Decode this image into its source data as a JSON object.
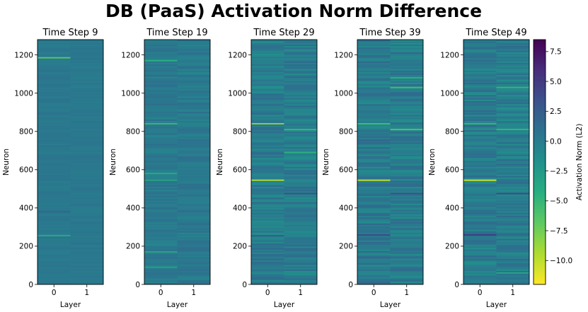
{
  "chart_data": {
    "type": "heatmap",
    "title": "DB (PaaS) Activation Norm Difference",
    "colormap": "viridis_r",
    "colorbar": {
      "label": "Activation Norm (L2)",
      "range": [
        -12.0,
        8.5
      ],
      "ticks": [
        "7.5",
        "5.0",
        "2.5",
        "0.0",
        "−2.5",
        "−5.0",
        "−7.5",
        "−10.0"
      ],
      "tick_values": [
        7.5,
        5.0,
        2.5,
        0.0,
        -2.5,
        -5.0,
        -7.5,
        -10.0
      ]
    },
    "panels": [
      {
        "title": "Time Step 9",
        "xlabel": "Layer",
        "ylabel": "Neuron",
        "x_ticks": [
          "0",
          "1"
        ],
        "y_ticks": [
          "0",
          "200",
          "400",
          "600",
          "800",
          "1000",
          "1200"
        ],
        "ylim": [
          0,
          1280
        ],
        "base_value": 0.3,
        "variation": 0.35,
        "highlights": [
          {
            "neuron": 1185,
            "layer": 0,
            "value": -6.5
          },
          {
            "neuron": 255,
            "layer": 0,
            "value": -4.0
          },
          {
            "neuron": 380,
            "layer": 0,
            "value": 1.5
          }
        ]
      },
      {
        "title": "Time Step 19",
        "xlabel": "Layer",
        "ylabel": "Neuron",
        "x_ticks": [
          "0",
          "1"
        ],
        "y_ticks": [
          "0",
          "200",
          "400",
          "600",
          "800",
          "1000",
          "1200"
        ],
        "ylim": [
          0,
          1280
        ],
        "base_value": 0.2,
        "variation": 0.9,
        "highlights": [
          {
            "neuron": 1170,
            "layer": 0,
            "value": -4.5
          },
          {
            "neuron": 840,
            "layer": 0,
            "value": -5.0
          },
          {
            "neuron": 580,
            "layer": 0,
            "value": -4.0
          },
          {
            "neuron": 545,
            "layer": 0,
            "value": -3.5
          },
          {
            "neuron": 170,
            "layer": 0,
            "value": -3.5
          },
          {
            "neuron": 90,
            "layer": 0,
            "value": -3.0
          }
        ]
      },
      {
        "title": "Time Step 29",
        "xlabel": "Layer",
        "ylabel": "Neuron",
        "x_ticks": [
          "0",
          "1"
        ],
        "y_ticks": [
          "0",
          "200",
          "400",
          "600",
          "800",
          "1000",
          "1200"
        ],
        "ylim": [
          0,
          1280
        ],
        "base_value": 0.0,
        "variation": 1.4,
        "highlights": [
          {
            "neuron": 840,
            "layer": 0,
            "value": -8.0
          },
          {
            "neuron": 545,
            "layer": 0,
            "value": -9.5
          },
          {
            "neuron": 810,
            "layer": 1,
            "value": -5.0
          },
          {
            "neuron": 690,
            "layer": 1,
            "value": -4.5
          },
          {
            "neuron": 475,
            "layer": 1,
            "value": 3.5
          },
          {
            "neuron": 255,
            "layer": 0,
            "value": 2.5
          }
        ]
      },
      {
        "title": "Time Step 39",
        "xlabel": "Layer",
        "ylabel": "Neuron",
        "x_ticks": [
          "0",
          "1"
        ],
        "y_ticks": [
          "0",
          "200",
          "400",
          "600",
          "800",
          "1000",
          "1200"
        ],
        "ylim": [
          0,
          1280
        ],
        "base_value": 0.0,
        "variation": 1.5,
        "highlights": [
          {
            "neuron": 545,
            "layer": 0,
            "value": -10.0
          },
          {
            "neuron": 840,
            "layer": 0,
            "value": -5.5
          },
          {
            "neuron": 810,
            "layer": 1,
            "value": -6.0
          },
          {
            "neuron": 1030,
            "layer": 1,
            "value": -5.5
          },
          {
            "neuron": 1080,
            "layer": 1,
            "value": -4.5
          },
          {
            "neuron": 475,
            "layer": 1,
            "value": 3.5
          },
          {
            "neuron": 258,
            "layer": 0,
            "value": 4.0
          }
        ]
      },
      {
        "title": "Time Step 49",
        "xlabel": "Layer",
        "ylabel": "Neuron",
        "x_ticks": [
          "0",
          "1"
        ],
        "y_ticks": [
          "0",
          "200",
          "400",
          "600",
          "800",
          "1000",
          "1200"
        ],
        "ylim": [
          0,
          1280
        ],
        "base_value": 0.0,
        "variation": 1.5,
        "highlights": [
          {
            "neuron": 545,
            "layer": 0,
            "value": -10.5
          },
          {
            "neuron": 840,
            "layer": 0,
            "value": -5.0
          },
          {
            "neuron": 810,
            "layer": 1,
            "value": -5.0
          },
          {
            "neuron": 1030,
            "layer": 1,
            "value": -5.0
          },
          {
            "neuron": 475,
            "layer": 1,
            "value": 4.0
          },
          {
            "neuron": 258,
            "layer": 0,
            "value": 5.0
          },
          {
            "neuron": 60,
            "layer": 1,
            "value": -3.5
          }
        ]
      }
    ]
  }
}
